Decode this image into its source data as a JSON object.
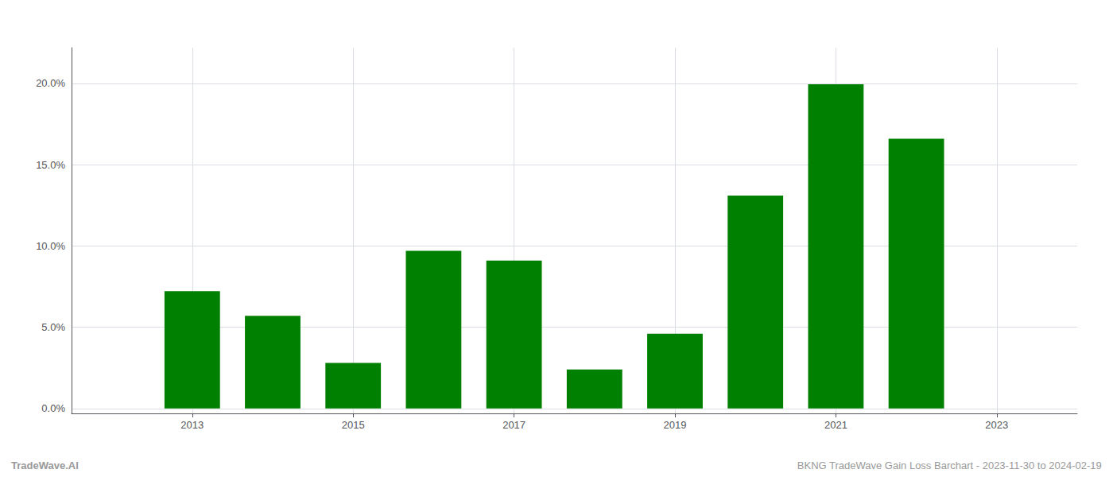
{
  "chart_data": {
    "type": "bar",
    "x": [
      2013,
      2014,
      2015,
      2016,
      2017,
      2018,
      2019,
      2020,
      2021,
      2022
    ],
    "values": [
      0.0722,
      0.057,
      0.028,
      0.097,
      0.091,
      0.024,
      0.046,
      0.131,
      0.1995,
      0.166
    ],
    "color": "#008000",
    "xlim": [
      2011.5,
      2024.0
    ],
    "xticks": [
      2013,
      2015,
      2017,
      2019,
      2021,
      2023
    ],
    "ylim": [
      -0.003,
      0.222
    ],
    "yticks": [
      {
        "value": 0.0,
        "label": "0.0%"
      },
      {
        "value": 0.05,
        "label": "5.0%"
      },
      {
        "value": 0.1,
        "label": "10.0%"
      },
      {
        "value": 0.15,
        "label": "15.0%"
      },
      {
        "value": 0.2,
        "label": "20.0%"
      }
    ],
    "grid": true,
    "annotations": [
      "TradeWave.AI",
      "BKNG TradeWave Gain Loss Barchart - 2023-11-30 to 2024-02-19"
    ]
  }
}
